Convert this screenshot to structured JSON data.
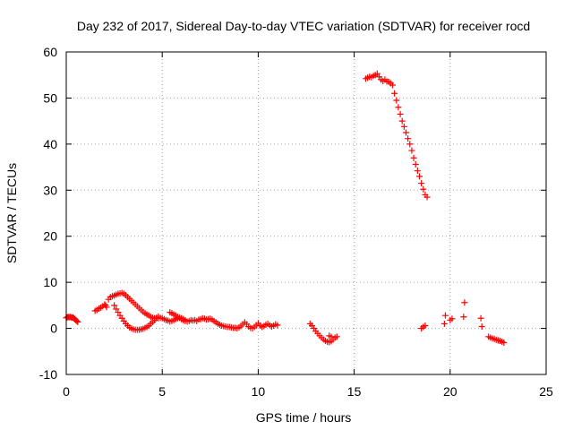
{
  "chart_data": {
    "type": "scatter",
    "title": "Day 232 of 2017, Sidereal Day-to-day VTEC variation (SDTVAR) for receiver rocd",
    "xlabel": "GPS time / hours",
    "ylabel": "SDTVAR / TECUs",
    "xlim": [
      0,
      25
    ],
    "ylim": [
      -10,
      60
    ],
    "xticks": [
      "0",
      "5",
      "10",
      "15",
      "20",
      "25"
    ],
    "yticks": [
      "-10",
      "0",
      "10",
      "20",
      "30",
      "40",
      "50",
      "60"
    ],
    "grid": true,
    "marker": "plus",
    "color": "#ff0000",
    "series": [
      {
        "name": "SDTVAR",
        "points": [
          [
            0.0,
            2.3
          ],
          [
            0.05,
            2.4
          ],
          [
            0.1,
            2.5
          ],
          [
            0.15,
            2.4
          ],
          [
            0.2,
            2.5
          ],
          [
            0.25,
            2.4
          ],
          [
            0.3,
            2.3
          ],
          [
            0.35,
            2.4
          ],
          [
            0.4,
            2.2
          ],
          [
            0.45,
            2.0
          ],
          [
            0.5,
            1.8
          ],
          [
            0.55,
            1.6
          ],
          [
            0.6,
            1.4
          ],
          [
            1.5,
            3.8
          ],
          [
            1.6,
            4.0
          ],
          [
            1.7,
            4.3
          ],
          [
            1.8,
            4.5
          ],
          [
            1.9,
            4.8
          ],
          [
            2.0,
            5.2
          ],
          [
            2.05,
            5.0
          ],
          [
            2.1,
            4.6
          ],
          [
            2.2,
            6.3
          ],
          [
            2.3,
            6.8
          ],
          [
            2.4,
            7.0
          ],
          [
            2.5,
            7.1
          ],
          [
            2.6,
            7.3
          ],
          [
            2.7,
            7.5
          ],
          [
            2.8,
            7.6
          ],
          [
            2.9,
            7.7
          ],
          [
            3.0,
            7.5
          ],
          [
            3.1,
            7.2
          ],
          [
            3.2,
            6.8
          ],
          [
            3.3,
            6.4
          ],
          [
            3.4,
            6.0
          ],
          [
            3.5,
            5.6
          ],
          [
            3.6,
            5.2
          ],
          [
            3.7,
            4.8
          ],
          [
            3.8,
            4.4
          ],
          [
            3.9,
            4.0
          ],
          [
            4.0,
            3.6
          ],
          [
            4.1,
            3.3
          ],
          [
            4.2,
            3.0
          ],
          [
            4.3,
            2.8
          ],
          [
            4.4,
            2.5
          ],
          [
            4.5,
            2.3
          ],
          [
            4.6,
            2.2
          ],
          [
            4.7,
            2.3
          ],
          [
            4.8,
            2.2
          ],
          [
            4.9,
            2.3
          ],
          [
            5.0,
            2.2
          ],
          [
            5.1,
            2.0
          ],
          [
            5.2,
            1.8
          ],
          [
            5.3,
            1.7
          ],
          [
            5.4,
            1.5
          ],
          [
            5.5,
            1.6
          ],
          [
            5.6,
            1.8
          ],
          [
            5.7,
            2.0
          ],
          [
            5.8,
            2.2
          ],
          [
            5.9,
            2.3
          ],
          [
            6.0,
            2.2
          ],
          [
            6.1,
            2.0
          ],
          [
            6.2,
            1.8
          ],
          [
            2.5,
            5.0
          ],
          [
            2.6,
            4.2
          ],
          [
            2.7,
            3.5
          ],
          [
            2.8,
            2.8
          ],
          [
            2.9,
            2.2
          ],
          [
            3.0,
            1.6
          ],
          [
            3.1,
            1.0
          ],
          [
            3.2,
            0.6
          ],
          [
            3.3,
            0.2
          ],
          [
            3.4,
            0.0
          ],
          [
            3.5,
            -0.2
          ],
          [
            3.6,
            -0.3
          ],
          [
            3.7,
            -0.3
          ],
          [
            3.8,
            -0.3
          ],
          [
            3.9,
            -0.2
          ],
          [
            4.0,
            -0.1
          ],
          [
            4.1,
            0.1
          ],
          [
            4.2,
            0.3
          ],
          [
            4.3,
            0.6
          ],
          [
            4.4,
            1.0
          ],
          [
            4.5,
            1.4
          ],
          [
            4.6,
            1.8
          ],
          [
            4.7,
            2.2
          ],
          [
            4.8,
            2.6
          ],
          [
            5.4,
            3.5
          ],
          [
            5.5,
            3.3
          ],
          [
            5.6,
            3.0
          ],
          [
            5.7,
            2.8
          ],
          [
            5.8,
            2.5
          ],
          [
            5.9,
            2.3
          ],
          [
            6.0,
            2.0
          ],
          [
            6.1,
            1.8
          ],
          [
            6.2,
            1.6
          ],
          [
            6.3,
            1.5
          ],
          [
            6.4,
            1.6
          ],
          [
            6.5,
            1.8
          ],
          [
            6.6,
            1.7
          ],
          [
            6.7,
            1.8
          ],
          [
            6.8,
            1.6
          ],
          [
            6.9,
            1.9
          ],
          [
            7.0,
            2.0
          ],
          [
            7.1,
            2.2
          ],
          [
            7.2,
            2.1
          ],
          [
            7.3,
            1.9
          ],
          [
            7.4,
            2.0
          ],
          [
            7.5,
            2.1
          ],
          [
            7.6,
            1.9
          ],
          [
            7.7,
            1.6
          ],
          [
            7.8,
            1.3
          ],
          [
            7.9,
            1.0
          ],
          [
            8.0,
            0.8
          ],
          [
            8.1,
            0.6
          ],
          [
            8.2,
            0.5
          ],
          [
            8.3,
            0.4
          ],
          [
            8.4,
            0.3
          ],
          [
            8.5,
            0.3
          ],
          [
            8.6,
            0.2
          ],
          [
            8.7,
            0.1
          ],
          [
            8.8,
            0.1
          ],
          [
            8.9,
            0.0
          ],
          [
            9.0,
            0.2
          ],
          [
            9.1,
            0.5
          ],
          [
            9.2,
            0.9
          ],
          [
            9.3,
            1.3
          ],
          [
            9.4,
            0.9
          ],
          [
            9.5,
            0.4
          ],
          [
            9.6,
            0.1
          ],
          [
            9.7,
            0.0
          ],
          [
            9.8,
            0.3
          ],
          [
            9.9,
            0.7
          ],
          [
            10.0,
            1.1
          ],
          [
            10.1,
            0.6
          ],
          [
            10.2,
            0.3
          ],
          [
            10.3,
            0.5
          ],
          [
            10.4,
            0.8
          ],
          [
            10.5,
            1.0
          ],
          [
            10.6,
            0.7
          ],
          [
            10.7,
            0.4
          ],
          [
            10.8,
            0.6
          ],
          [
            10.9,
            0.9
          ],
          [
            11.0,
            0.7
          ],
          [
            12.7,
            1.0
          ],
          [
            12.8,
            0.6
          ],
          [
            12.9,
            0.0
          ],
          [
            13.0,
            -0.6
          ],
          [
            13.1,
            -1.1
          ],
          [
            13.2,
            -1.6
          ],
          [
            13.3,
            -2.0
          ],
          [
            13.4,
            -2.4
          ],
          [
            13.5,
            -2.7
          ],
          [
            13.6,
            -2.9
          ],
          [
            13.7,
            -3.0
          ],
          [
            13.8,
            -2.8
          ],
          [
            13.9,
            -2.4
          ],
          [
            14.0,
            -2.0
          ],
          [
            14.1,
            -1.8
          ],
          [
            13.7,
            -1.6
          ],
          [
            13.8,
            -1.8
          ],
          [
            15.6,
            54.2
          ],
          [
            15.7,
            54.4
          ],
          [
            15.8,
            54.6
          ],
          [
            15.9,
            54.5
          ],
          [
            16.0,
            54.8
          ],
          [
            16.1,
            55.0
          ],
          [
            16.2,
            55.3
          ],
          [
            16.3,
            54.6
          ],
          [
            16.4,
            54.0
          ],
          [
            16.5,
            53.7
          ],
          [
            16.6,
            54.0
          ],
          [
            16.7,
            53.6
          ],
          [
            16.8,
            53.5
          ],
          [
            16.9,
            53.2
          ],
          [
            17.0,
            52.8
          ],
          [
            17.1,
            51.0
          ],
          [
            17.2,
            49.5
          ],
          [
            17.3,
            48.0
          ],
          [
            17.4,
            46.5
          ],
          [
            17.5,
            45.0
          ],
          [
            17.6,
            43.8
          ],
          [
            17.7,
            42.5
          ],
          [
            17.8,
            41.2
          ],
          [
            17.9,
            40.0
          ],
          [
            18.0,
            38.6
          ],
          [
            18.1,
            37.0
          ],
          [
            18.2,
            35.6
          ],
          [
            18.3,
            34.2
          ],
          [
            18.4,
            33.0
          ],
          [
            18.5,
            31.5
          ],
          [
            18.6,
            30.2
          ],
          [
            18.7,
            29.0
          ],
          [
            18.8,
            28.5
          ],
          [
            18.5,
            0.0
          ],
          [
            18.6,
            0.3
          ],
          [
            18.7,
            0.6
          ],
          [
            19.7,
            1.0
          ],
          [
            19.75,
            2.8
          ],
          [
            20.0,
            1.8
          ],
          [
            20.1,
            2.1
          ],
          [
            20.7,
            2.5
          ],
          [
            20.75,
            5.6
          ],
          [
            21.6,
            2.2
          ],
          [
            21.65,
            0.4
          ],
          [
            22.0,
            -1.8
          ],
          [
            22.1,
            -2.0
          ],
          [
            22.2,
            -2.2
          ],
          [
            22.3,
            -2.3
          ],
          [
            22.4,
            -2.5
          ],
          [
            22.5,
            -2.6
          ],
          [
            22.6,
            -2.7
          ],
          [
            22.7,
            -2.9
          ],
          [
            22.8,
            -3.1
          ]
        ]
      }
    ]
  }
}
